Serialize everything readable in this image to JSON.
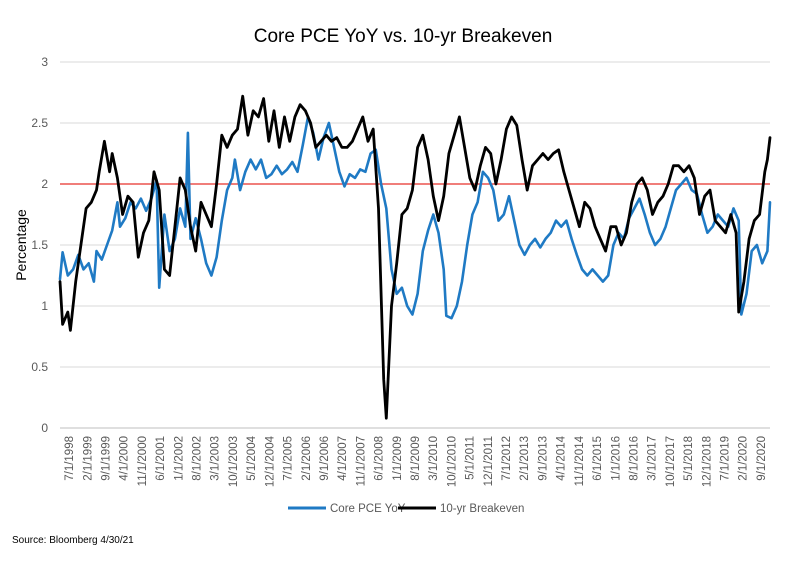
{
  "chart_data": {
    "type": "line",
    "title": "Core PCE YoY vs. 10-yr Breakeven",
    "ylabel": "Percentage",
    "xlabel": "",
    "ylim": [
      0,
      3
    ],
    "yticks": [
      0,
      0.5,
      1,
      1.5,
      2,
      2.5,
      3
    ],
    "xlim": [
      "1998-07",
      "2021-03"
    ],
    "x_tick_labels": [
      "7/1/1998",
      "2/1/1999",
      "9/1/1999",
      "4/1/2000",
      "11/1/2000",
      "6/1/2001",
      "1/1/2002",
      "8/1/2002",
      "3/1/2003",
      "10/1/2003",
      "5/1/2004",
      "12/1/2004",
      "7/1/2005",
      "2/1/2006",
      "9/1/2006",
      "4/1/2007",
      "11/1/2007",
      "6/1/2008",
      "1/1/2009",
      "8/1/2009",
      "3/1/2010",
      "10/1/2010",
      "5/1/2011",
      "12/1/2011",
      "7/1/2012",
      "2/1/2013",
      "9/1/2013",
      "4/1/2014",
      "11/1/2014",
      "6/1/2015",
      "1/1/2016",
      "8/1/2016",
      "3/1/2017",
      "10/1/2017",
      "5/1/2018",
      "12/1/2018",
      "7/1/2019",
      "2/1/2020",
      "9/1/2020"
    ],
    "reference_line": {
      "y": 2,
      "color": "#e8302a"
    },
    "grid": true,
    "legend_position": "bottom",
    "source_note": "Source: Bloomberg 4/30/21",
    "series": [
      {
        "name": "Core PCE YoY",
        "color": "#1f7ac4",
        "points": [
          [
            "1998-07",
            1.22
          ],
          [
            "1998-08",
            1.44
          ],
          [
            "1998-10",
            1.25
          ],
          [
            "1998-12",
            1.3
          ],
          [
            "1999-02",
            1.42
          ],
          [
            "1999-04",
            1.3
          ],
          [
            "1999-06",
            1.35
          ],
          [
            "1999-08",
            1.2
          ],
          [
            "1999-09",
            1.45
          ],
          [
            "1999-11",
            1.38
          ],
          [
            "2000-01",
            1.5
          ],
          [
            "2000-03",
            1.62
          ],
          [
            "2000-05",
            1.85
          ],
          [
            "2000-06",
            1.65
          ],
          [
            "2000-08",
            1.72
          ],
          [
            "2000-10",
            1.85
          ],
          [
            "2000-12",
            1.8
          ],
          [
            "2001-02",
            1.88
          ],
          [
            "2001-04",
            1.78
          ],
          [
            "2001-06",
            1.88
          ],
          [
            "2001-08",
            2.03
          ],
          [
            "2001-09",
            1.15
          ],
          [
            "2001-11",
            1.75
          ],
          [
            "2002-01",
            1.45
          ],
          [
            "2002-03",
            1.55
          ],
          [
            "2002-05",
            1.8
          ],
          [
            "2002-07",
            1.65
          ],
          [
            "2002-08",
            2.42
          ],
          [
            "2002-09",
            1.55
          ],
          [
            "2002-11",
            1.72
          ],
          [
            "2003-01",
            1.55
          ],
          [
            "2003-03",
            1.35
          ],
          [
            "2003-05",
            1.25
          ],
          [
            "2003-07",
            1.4
          ],
          [
            "2003-09",
            1.7
          ],
          [
            "2003-11",
            1.95
          ],
          [
            "2004-01",
            2.05
          ],
          [
            "2004-02",
            2.2
          ],
          [
            "2004-04",
            1.95
          ],
          [
            "2004-06",
            2.1
          ],
          [
            "2004-08",
            2.2
          ],
          [
            "2004-10",
            2.12
          ],
          [
            "2004-12",
            2.2
          ],
          [
            "2005-02",
            2.05
          ],
          [
            "2005-04",
            2.08
          ],
          [
            "2005-06",
            2.15
          ],
          [
            "2005-08",
            2.08
          ],
          [
            "2005-10",
            2.12
          ],
          [
            "2005-12",
            2.18
          ],
          [
            "2006-02",
            2.1
          ],
          [
            "2006-04",
            2.32
          ],
          [
            "2006-06",
            2.55
          ],
          [
            "2006-08",
            2.42
          ],
          [
            "2006-10",
            2.2
          ],
          [
            "2006-12",
            2.38
          ],
          [
            "2007-02",
            2.5
          ],
          [
            "2007-04",
            2.3
          ],
          [
            "2007-06",
            2.1
          ],
          [
            "2007-08",
            1.98
          ],
          [
            "2007-10",
            2.08
          ],
          [
            "2007-12",
            2.05
          ],
          [
            "2008-02",
            2.12
          ],
          [
            "2008-04",
            2.1
          ],
          [
            "2008-06",
            2.25
          ],
          [
            "2008-08",
            2.28
          ],
          [
            "2008-10",
            2.0
          ],
          [
            "2008-12",
            1.8
          ],
          [
            "2009-02",
            1.3
          ],
          [
            "2009-04",
            1.1
          ],
          [
            "2009-06",
            1.15
          ],
          [
            "2009-08",
            1.0
          ],
          [
            "2009-10",
            0.93
          ],
          [
            "2009-12",
            1.1
          ],
          [
            "2010-02",
            1.45
          ],
          [
            "2010-04",
            1.62
          ],
          [
            "2010-06",
            1.75
          ],
          [
            "2010-08",
            1.6
          ],
          [
            "2010-10",
            1.3
          ],
          [
            "2010-11",
            0.92
          ],
          [
            "2011-01",
            0.9
          ],
          [
            "2011-03",
            1.0
          ],
          [
            "2011-05",
            1.2
          ],
          [
            "2011-07",
            1.5
          ],
          [
            "2011-09",
            1.75
          ],
          [
            "2011-11",
            1.85
          ],
          [
            "2012-01",
            2.1
          ],
          [
            "2012-03",
            2.05
          ],
          [
            "2012-05",
            1.95
          ],
          [
            "2012-07",
            1.7
          ],
          [
            "2012-09",
            1.75
          ],
          [
            "2012-11",
            1.9
          ],
          [
            "2013-01",
            1.7
          ],
          [
            "2013-03",
            1.5
          ],
          [
            "2013-05",
            1.42
          ],
          [
            "2013-07",
            1.5
          ],
          [
            "2013-09",
            1.55
          ],
          [
            "2013-11",
            1.48
          ],
          [
            "2014-01",
            1.55
          ],
          [
            "2014-03",
            1.6
          ],
          [
            "2014-05",
            1.7
          ],
          [
            "2014-07",
            1.65
          ],
          [
            "2014-09",
            1.7
          ],
          [
            "2014-11",
            1.55
          ],
          [
            "2015-01",
            1.42
          ],
          [
            "2015-03",
            1.3
          ],
          [
            "2015-05",
            1.25
          ],
          [
            "2015-07",
            1.3
          ],
          [
            "2015-09",
            1.25
          ],
          [
            "2015-11",
            1.2
          ],
          [
            "2016-01",
            1.25
          ],
          [
            "2016-03",
            1.5
          ],
          [
            "2016-05",
            1.6
          ],
          [
            "2016-07",
            1.55
          ],
          [
            "2016-09",
            1.72
          ],
          [
            "2016-11",
            1.8
          ],
          [
            "2017-01",
            1.88
          ],
          [
            "2017-03",
            1.75
          ],
          [
            "2017-05",
            1.6
          ],
          [
            "2017-07",
            1.5
          ],
          [
            "2017-09",
            1.55
          ],
          [
            "2017-11",
            1.65
          ],
          [
            "2018-01",
            1.8
          ],
          [
            "2018-03",
            1.95
          ],
          [
            "2018-05",
            2.0
          ],
          [
            "2018-07",
            2.05
          ],
          [
            "2018-09",
            1.95
          ],
          [
            "2018-11",
            1.92
          ],
          [
            "2019-01",
            1.75
          ],
          [
            "2019-03",
            1.6
          ],
          [
            "2019-05",
            1.65
          ],
          [
            "2019-07",
            1.75
          ],
          [
            "2019-09",
            1.7
          ],
          [
            "2019-11",
            1.65
          ],
          [
            "2020-01",
            1.8
          ],
          [
            "2020-03",
            1.7
          ],
          [
            "2020-04",
            0.93
          ],
          [
            "2020-06",
            1.1
          ],
          [
            "2020-08",
            1.45
          ],
          [
            "2020-10",
            1.5
          ],
          [
            "2020-12",
            1.35
          ],
          [
            "2021-02",
            1.45
          ],
          [
            "2021-03",
            1.85
          ]
        ]
      },
      {
        "name": "10-yr Breakeven",
        "color": "#000000",
        "points": [
          [
            "1998-07",
            1.2
          ],
          [
            "1998-08",
            0.85
          ],
          [
            "1998-10",
            0.95
          ],
          [
            "1998-11",
            0.8
          ],
          [
            "1999-01",
            1.2
          ],
          [
            "1999-03",
            1.5
          ],
          [
            "1999-05",
            1.8
          ],
          [
            "1999-07",
            1.85
          ],
          [
            "1999-09",
            1.95
          ],
          [
            "1999-10",
            2.1
          ],
          [
            "1999-12",
            2.35
          ],
          [
            "2000-02",
            2.1
          ],
          [
            "2000-03",
            2.25
          ],
          [
            "2000-05",
            2.05
          ],
          [
            "2000-07",
            1.75
          ],
          [
            "2000-09",
            1.9
          ],
          [
            "2000-11",
            1.85
          ],
          [
            "2001-01",
            1.4
          ],
          [
            "2001-03",
            1.6
          ],
          [
            "2001-05",
            1.7
          ],
          [
            "2001-07",
            2.1
          ],
          [
            "2001-09",
            1.95
          ],
          [
            "2001-11",
            1.3
          ],
          [
            "2002-01",
            1.25
          ],
          [
            "2002-03",
            1.65
          ],
          [
            "2002-05",
            2.05
          ],
          [
            "2002-07",
            1.95
          ],
          [
            "2002-09",
            1.65
          ],
          [
            "2002-11",
            1.45
          ],
          [
            "2003-01",
            1.85
          ],
          [
            "2003-03",
            1.75
          ],
          [
            "2003-05",
            1.65
          ],
          [
            "2003-07",
            2.0
          ],
          [
            "2003-09",
            2.4
          ],
          [
            "2003-11",
            2.3
          ],
          [
            "2004-01",
            2.4
          ],
          [
            "2004-03",
            2.45
          ],
          [
            "2004-05",
            2.72
          ],
          [
            "2004-07",
            2.4
          ],
          [
            "2004-09",
            2.6
          ],
          [
            "2004-11",
            2.55
          ],
          [
            "2005-01",
            2.7
          ],
          [
            "2005-03",
            2.35
          ],
          [
            "2005-05",
            2.6
          ],
          [
            "2005-07",
            2.3
          ],
          [
            "2005-09",
            2.55
          ],
          [
            "2005-11",
            2.35
          ],
          [
            "2006-01",
            2.55
          ],
          [
            "2006-03",
            2.65
          ],
          [
            "2006-05",
            2.6
          ],
          [
            "2006-07",
            2.5
          ],
          [
            "2006-09",
            2.3
          ],
          [
            "2006-11",
            2.35
          ],
          [
            "2007-01",
            2.4
          ],
          [
            "2007-03",
            2.35
          ],
          [
            "2007-05",
            2.38
          ],
          [
            "2007-07",
            2.3
          ],
          [
            "2007-09",
            2.3
          ],
          [
            "2007-11",
            2.35
          ],
          [
            "2008-01",
            2.45
          ],
          [
            "2008-03",
            2.55
          ],
          [
            "2008-05",
            2.35
          ],
          [
            "2008-07",
            2.45
          ],
          [
            "2008-09",
            1.8
          ],
          [
            "2008-11",
            0.4
          ],
          [
            "2008-12",
            0.08
          ],
          [
            "2009-02",
            1.0
          ],
          [
            "2009-04",
            1.35
          ],
          [
            "2009-06",
            1.75
          ],
          [
            "2009-08",
            1.8
          ],
          [
            "2009-10",
            1.95
          ],
          [
            "2009-12",
            2.3
          ],
          [
            "2010-02",
            2.4
          ],
          [
            "2010-04",
            2.2
          ],
          [
            "2010-06",
            1.9
          ],
          [
            "2010-08",
            1.7
          ],
          [
            "2010-10",
            1.9
          ],
          [
            "2010-12",
            2.25
          ],
          [
            "2011-02",
            2.4
          ],
          [
            "2011-04",
            2.55
          ],
          [
            "2011-06",
            2.3
          ],
          [
            "2011-08",
            2.05
          ],
          [
            "2011-10",
            1.95
          ],
          [
            "2011-12",
            2.15
          ],
          [
            "2012-02",
            2.3
          ],
          [
            "2012-04",
            2.25
          ],
          [
            "2012-06",
            2.0
          ],
          [
            "2012-08",
            2.2
          ],
          [
            "2012-10",
            2.45
          ],
          [
            "2012-12",
            2.55
          ],
          [
            "2013-02",
            2.48
          ],
          [
            "2013-04",
            2.2
          ],
          [
            "2013-06",
            1.95
          ],
          [
            "2013-08",
            2.15
          ],
          [
            "2013-10",
            2.2
          ],
          [
            "2013-12",
            2.25
          ],
          [
            "2014-02",
            2.2
          ],
          [
            "2014-04",
            2.25
          ],
          [
            "2014-06",
            2.28
          ],
          [
            "2014-08",
            2.1
          ],
          [
            "2014-10",
            1.95
          ],
          [
            "2014-12",
            1.8
          ],
          [
            "2015-02",
            1.65
          ],
          [
            "2015-04",
            1.85
          ],
          [
            "2015-06",
            1.8
          ],
          [
            "2015-08",
            1.65
          ],
          [
            "2015-10",
            1.55
          ],
          [
            "2015-12",
            1.45
          ],
          [
            "2016-02",
            1.65
          ],
          [
            "2016-04",
            1.65
          ],
          [
            "2016-06",
            1.5
          ],
          [
            "2016-08",
            1.6
          ],
          [
            "2016-10",
            1.85
          ],
          [
            "2016-12",
            2.0
          ],
          [
            "2017-02",
            2.05
          ],
          [
            "2017-04",
            1.95
          ],
          [
            "2017-06",
            1.75
          ],
          [
            "2017-08",
            1.85
          ],
          [
            "2017-10",
            1.9
          ],
          [
            "2017-12",
            2.0
          ],
          [
            "2018-02",
            2.15
          ],
          [
            "2018-04",
            2.15
          ],
          [
            "2018-06",
            2.1
          ],
          [
            "2018-08",
            2.15
          ],
          [
            "2018-10",
            2.05
          ],
          [
            "2018-12",
            1.75
          ],
          [
            "2019-02",
            1.9
          ],
          [
            "2019-04",
            1.95
          ],
          [
            "2019-06",
            1.7
          ],
          [
            "2019-08",
            1.65
          ],
          [
            "2019-10",
            1.6
          ],
          [
            "2019-12",
            1.75
          ],
          [
            "2020-02",
            1.6
          ],
          [
            "2020-03",
            0.95
          ],
          [
            "2020-05",
            1.2
          ],
          [
            "2020-07",
            1.55
          ],
          [
            "2020-09",
            1.7
          ],
          [
            "2020-11",
            1.75
          ],
          [
            "2021-01",
            2.1
          ],
          [
            "2021-02",
            2.2
          ],
          [
            "2021-03",
            2.38
          ]
        ]
      }
    ]
  }
}
